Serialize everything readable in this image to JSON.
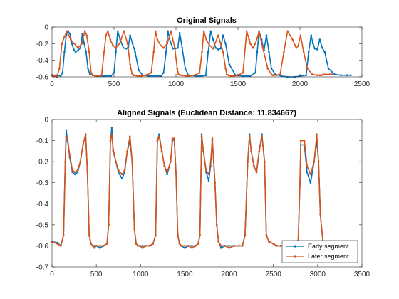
{
  "chart_data": [
    {
      "type": "line",
      "title": "Original Signals",
      "xlabel": "",
      "ylabel": "",
      "xlim": [
        0,
        2500
      ],
      "ylim": [
        -0.6,
        0
      ],
      "xticks": [
        0,
        500,
        1000,
        1500,
        2000,
        2500
      ],
      "yticks": [
        -0.6,
        -0.4,
        -0.2,
        0
      ],
      "xtick_labels": [
        "0",
        "500",
        "1000",
        "1500",
        "2000",
        "2500"
      ],
      "ytick_labels": [
        "-0.6",
        "-0.4",
        "-0.2",
        "0"
      ],
      "grid": false,
      "series": [
        {
          "color": "#0072BD",
          "marker": "dot",
          "x": [
            0,
            40,
            70,
            85,
            100,
            115,
            130,
            145,
            160,
            175,
            190,
            210,
            230,
            245,
            260,
            275,
            290,
            305,
            330,
            360,
            420,
            475,
            500,
            515,
            530,
            550,
            575,
            600,
            615,
            630,
            650,
            670,
            700,
            730,
            780,
            830,
            880,
            900,
            920,
            935,
            955,
            975,
            995,
            1015,
            1030,
            1050,
            1075,
            1100,
            1160,
            1210,
            1240,
            1260,
            1280,
            1300,
            1320,
            1340,
            1360,
            1380,
            1400,
            1430,
            1480,
            1540,
            1600,
            1640,
            1655,
            1670,
            1690,
            1710,
            1730,
            1750,
            1770,
            1800,
            1850,
            1900,
            1960,
            2050,
            2070,
            2090,
            2105,
            2120,
            2140,
            2160,
            2180,
            2200,
            2230,
            2280,
            2330,
            2380,
            2410
          ],
          "y": [
            -0.58,
            -0.58,
            -0.59,
            -0.55,
            -0.3,
            -0.1,
            -0.05,
            -0.08,
            -0.2,
            -0.27,
            -0.3,
            -0.28,
            -0.25,
            -0.08,
            -0.2,
            -0.3,
            -0.5,
            -0.57,
            -0.58,
            -0.59,
            -0.59,
            -0.59,
            -0.55,
            -0.3,
            -0.05,
            -0.15,
            -0.25,
            -0.26,
            -0.24,
            -0.1,
            -0.2,
            -0.3,
            -0.52,
            -0.58,
            -0.59,
            -0.59,
            -0.59,
            -0.55,
            -0.3,
            -0.05,
            -0.18,
            -0.26,
            -0.26,
            -0.25,
            -0.07,
            -0.25,
            -0.5,
            -0.58,
            -0.59,
            -0.59,
            -0.58,
            -0.3,
            -0.05,
            -0.15,
            -0.25,
            -0.27,
            -0.26,
            -0.1,
            -0.2,
            -0.45,
            -0.58,
            -0.59,
            -0.59,
            -0.55,
            -0.3,
            -0.05,
            -0.15,
            -0.28,
            -0.1,
            -0.3,
            -0.5,
            -0.57,
            -0.59,
            -0.6,
            -0.6,
            -0.58,
            -0.3,
            -0.1,
            -0.2,
            -0.26,
            -0.27,
            -0.15,
            -0.25,
            -0.3,
            -0.5,
            -0.57,
            -0.58,
            -0.58,
            -0.58
          ]
        },
        {
          "color": "#D95319",
          "marker": "dot",
          "x": [
            0,
            20,
            40,
            60,
            80,
            100,
            120,
            150,
            180,
            210,
            240,
            255,
            265,
            280,
            300,
            315,
            330,
            350,
            370,
            400,
            420,
            435,
            450,
            470,
            490,
            515,
            545,
            580,
            610,
            630,
            645,
            660,
            690,
            720,
            760,
            800,
            820,
            835,
            850,
            875,
            900,
            930,
            960,
            990,
            1010,
            1020,
            1035,
            1050,
            1080,
            1110,
            1150,
            1190,
            1210,
            1225,
            1245,
            1270,
            1300,
            1340,
            1380,
            1400,
            1410,
            1425,
            1440,
            1470,
            1500,
            1540,
            1570,
            1590,
            1600,
            1620,
            1640,
            1670,
            1700,
            1740,
            1770,
            1780,
            1790,
            1810,
            1840,
            1870,
            1900,
            1940,
            1960,
            1970,
            1985,
            2005,
            2030,
            2060,
            2100,
            2140,
            2160,
            2175,
            2190,
            2210,
            2240,
            2260
          ],
          "y": [
            -0.58,
            -0.59,
            -0.6,
            -0.5,
            -0.2,
            -0.12,
            -0.05,
            -0.15,
            -0.2,
            -0.25,
            -0.2,
            -0.1,
            -0.05,
            -0.1,
            -0.3,
            -0.55,
            -0.58,
            -0.59,
            -0.59,
            -0.58,
            -0.3,
            -0.1,
            -0.05,
            -0.15,
            -0.22,
            -0.25,
            -0.2,
            -0.05,
            -0.2,
            -0.45,
            -0.56,
            -0.58,
            -0.59,
            -0.59,
            -0.58,
            -0.55,
            -0.3,
            -0.05,
            -0.15,
            -0.22,
            -0.25,
            -0.2,
            -0.05,
            -0.25,
            -0.5,
            -0.57,
            -0.58,
            -0.58,
            -0.59,
            -0.59,
            -0.58,
            -0.55,
            -0.3,
            -0.05,
            -0.15,
            -0.22,
            -0.26,
            -0.1,
            -0.3,
            -0.5,
            -0.57,
            -0.58,
            -0.59,
            -0.59,
            -0.58,
            -0.55,
            -0.05,
            -0.15,
            -0.2,
            -0.25,
            -0.2,
            -0.06,
            -0.25,
            -0.5,
            -0.57,
            -0.58,
            -0.58,
            -0.58,
            -0.57,
            -0.3,
            -0.05,
            -0.15,
            -0.22,
            -0.25,
            -0.23,
            -0.1,
            -0.3,
            -0.5,
            -0.57,
            -0.58,
            -0.58,
            -0.58,
            -0.57,
            -0.57,
            -0.57,
            -0.57
          ]
        }
      ]
    },
    {
      "type": "line",
      "title": "Aligned Signals (Euclidean Distance: 11.834667)",
      "xlabel": "",
      "ylabel": "",
      "xlim": [
        0,
        3500
      ],
      "ylim": [
        -0.7,
        0
      ],
      "xticks": [
        0,
        500,
        1000,
        1500,
        2000,
        2500,
        3000,
        3500
      ],
      "yticks": [
        -0.7,
        -0.6,
        -0.5,
        -0.4,
        -0.3,
        -0.2,
        -0.1,
        0
      ],
      "xtick_labels": [
        "0",
        "500",
        "1000",
        "1500",
        "2000",
        "2500",
        "3000",
        "3500"
      ],
      "ytick_labels": [
        "-0.7",
        "-0.6",
        "-0.5",
        "-0.4",
        "-0.3",
        "-0.2",
        "-0.1",
        "0"
      ],
      "grid": false,
      "legend_position": "bottom-right",
      "series": [
        {
          "name": "Early segment",
          "color": "#0072BD",
          "marker": "dot",
          "x": [
            0,
            60,
            100,
            130,
            150,
            160,
            175,
            200,
            230,
            260,
            290,
            320,
            350,
            380,
            400,
            420,
            440,
            460,
            480,
            500,
            540,
            580,
            620,
            640,
            660,
            675,
            690,
            720,
            750,
            790,
            820,
            850,
            880,
            905,
            930,
            950,
            970,
            990,
            1020,
            1060,
            1100,
            1140,
            1170,
            1190,
            1210,
            1240,
            1270,
            1300,
            1340,
            1360,
            1380,
            1400,
            1420,
            1440,
            1460,
            1500,
            1540,
            1580,
            1620,
            1650,
            1670,
            1690,
            1710,
            1740,
            1770,
            1790,
            1810,
            1840,
            1860,
            1880,
            1910,
            1950,
            2000,
            2060,
            2110,
            2150,
            2180,
            2210,
            2230,
            2250,
            2280,
            2310,
            2340,
            2370,
            2400,
            2420,
            2450,
            2500,
            2540,
            2580,
            2620,
            2660,
            2700,
            2750,
            2780,
            2800,
            2810,
            2850,
            2880,
            2920,
            2960,
            2990,
            3010,
            3030,
            3060,
            3080,
            3100
          ],
          "y": [
            -0.58,
            -0.585,
            -0.6,
            -0.55,
            -0.2,
            -0.05,
            -0.1,
            -0.18,
            -0.25,
            -0.26,
            -0.25,
            -0.2,
            -0.12,
            -0.07,
            -0.25,
            -0.55,
            -0.59,
            -0.6,
            -0.6,
            -0.6,
            -0.61,
            -0.6,
            -0.59,
            -0.5,
            -0.1,
            -0.04,
            -0.15,
            -0.2,
            -0.25,
            -0.28,
            -0.25,
            -0.15,
            -0.1,
            -0.2,
            -0.52,
            -0.59,
            -0.6,
            -0.6,
            -0.6,
            -0.6,
            -0.6,
            -0.59,
            -0.55,
            -0.1,
            -0.07,
            -0.15,
            -0.22,
            -0.26,
            -0.2,
            -0.1,
            -0.09,
            -0.25,
            -0.55,
            -0.59,
            -0.6,
            -0.61,
            -0.6,
            -0.6,
            -0.6,
            -0.59,
            -0.55,
            -0.07,
            -0.15,
            -0.25,
            -0.29,
            -0.22,
            -0.1,
            -0.3,
            -0.5,
            -0.58,
            -0.61,
            -0.6,
            -0.6,
            -0.6,
            -0.6,
            -0.6,
            -0.55,
            -0.2,
            -0.07,
            -0.15,
            -0.22,
            -0.25,
            -0.15,
            -0.07,
            -0.2,
            -0.55,
            -0.58,
            -0.59,
            -0.6,
            -0.6,
            -0.6,
            -0.6,
            -0.6,
            -0.58,
            -0.58,
            -0.3,
            -0.12,
            -0.12,
            -0.25,
            -0.3,
            -0.2,
            -0.1,
            -0.2,
            -0.45,
            -0.58,
            -0.6,
            -0.6
          ]
        },
        {
          "name": "Later segment",
          "color": "#D95319",
          "marker": "dot",
          "x": [
            0,
            60,
            100,
            130,
            150,
            160,
            175,
            200,
            230,
            260,
            290,
            320,
            350,
            380,
            400,
            420,
            440,
            460,
            480,
            500,
            540,
            580,
            620,
            640,
            660,
            675,
            690,
            720,
            750,
            790,
            820,
            850,
            880,
            905,
            930,
            950,
            970,
            990,
            1020,
            1060,
            1100,
            1140,
            1170,
            1190,
            1210,
            1240,
            1270,
            1300,
            1340,
            1360,
            1380,
            1400,
            1420,
            1440,
            1460,
            1500,
            1540,
            1580,
            1620,
            1650,
            1670,
            1690,
            1710,
            1740,
            1770,
            1790,
            1810,
            1840,
            1860,
            1880,
            1910,
            1950,
            2000,
            2060,
            2110,
            2150,
            2180,
            2210,
            2230,
            2250,
            2280,
            2310,
            2340,
            2370,
            2400,
            2420,
            2450,
            2500,
            2540,
            2580,
            2620,
            2660,
            2700,
            2750,
            2780,
            2800,
            2810,
            2850,
            2880,
            2920,
            2960,
            2990,
            3010,
            3030,
            3060,
            3080,
            3100
          ],
          "y": [
            -0.58,
            -0.59,
            -0.6,
            -0.55,
            -0.2,
            -0.08,
            -0.09,
            -0.17,
            -0.24,
            -0.25,
            -0.24,
            -0.2,
            -0.12,
            -0.07,
            -0.25,
            -0.55,
            -0.59,
            -0.6,
            -0.61,
            -0.6,
            -0.6,
            -0.6,
            -0.59,
            -0.5,
            -0.1,
            -0.07,
            -0.14,
            -0.2,
            -0.24,
            -0.26,
            -0.24,
            -0.15,
            -0.08,
            -0.2,
            -0.52,
            -0.59,
            -0.6,
            -0.6,
            -0.61,
            -0.6,
            -0.6,
            -0.59,
            -0.55,
            -0.1,
            -0.08,
            -0.15,
            -0.22,
            -0.25,
            -0.2,
            -0.09,
            -0.09,
            -0.25,
            -0.55,
            -0.59,
            -0.6,
            -0.6,
            -0.6,
            -0.61,
            -0.6,
            -0.59,
            -0.55,
            -0.08,
            -0.15,
            -0.24,
            -0.26,
            -0.21,
            -0.09,
            -0.3,
            -0.5,
            -0.58,
            -0.6,
            -0.6,
            -0.61,
            -0.6,
            -0.6,
            -0.6,
            -0.55,
            -0.2,
            -0.08,
            -0.15,
            -0.22,
            -0.25,
            -0.15,
            -0.08,
            -0.2,
            -0.55,
            -0.58,
            -0.59,
            -0.6,
            -0.6,
            -0.6,
            -0.6,
            -0.6,
            -0.58,
            -0.58,
            -0.3,
            -0.1,
            -0.1,
            -0.22,
            -0.26,
            -0.2,
            -0.07,
            -0.2,
            -0.45,
            -0.58,
            -0.6,
            -0.6
          ]
        }
      ]
    }
  ]
}
